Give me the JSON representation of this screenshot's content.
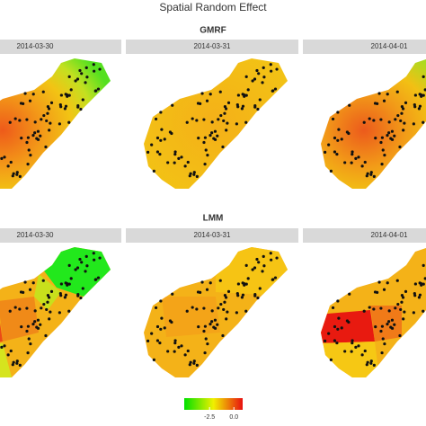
{
  "title": "Spatial Random Effect",
  "rows": [
    {
      "label": "GMRF",
      "panels": [
        "2014-03-30",
        "2014-03-31",
        "2014-04-01"
      ]
    },
    {
      "label": "LMM",
      "panels": [
        "2014-03-30",
        "2014-03-31",
        "2014-04-01"
      ]
    }
  ],
  "colorbar": {
    "xlim": [
      -5.1,
      0.9
    ],
    "ticks": [
      -2.5,
      {
        "value": 0,
        "label": "0.0"
      }
    ]
  }
}
